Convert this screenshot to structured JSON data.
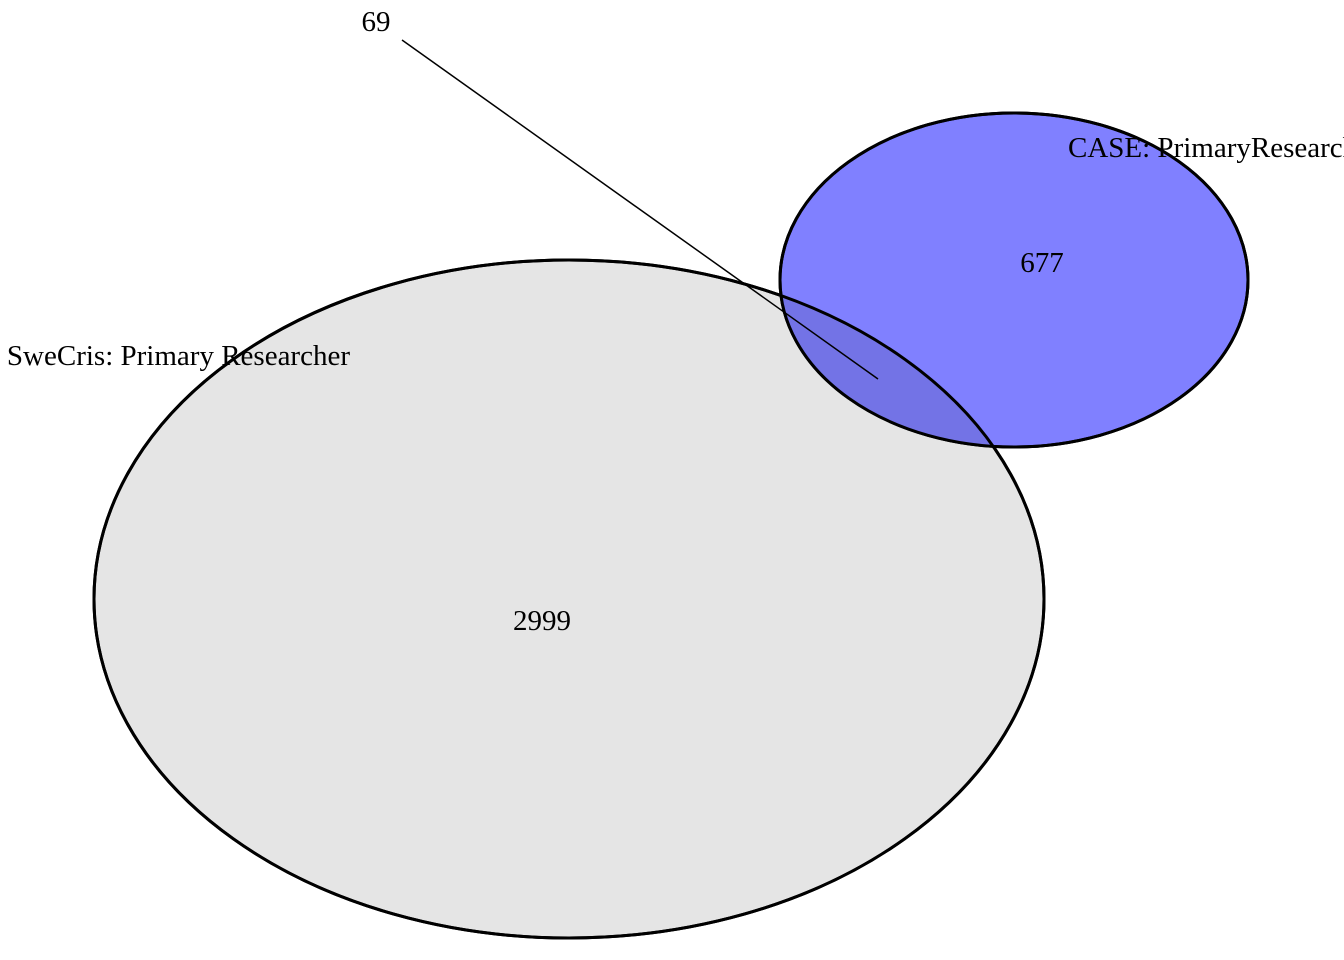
{
  "diagram": {
    "type": "venn",
    "sets": [
      {
        "label": "SweCris: Primary Researcher",
        "only_count": "2999",
        "fill_color": "#e5e5e5",
        "stroke_color": "#000000"
      },
      {
        "label": "CASE: PrimaryResearcher",
        "only_count": "677",
        "fill_color": "#8080ff",
        "stroke_color": "#000000"
      }
    ],
    "intersection": {
      "count": "69"
    }
  }
}
